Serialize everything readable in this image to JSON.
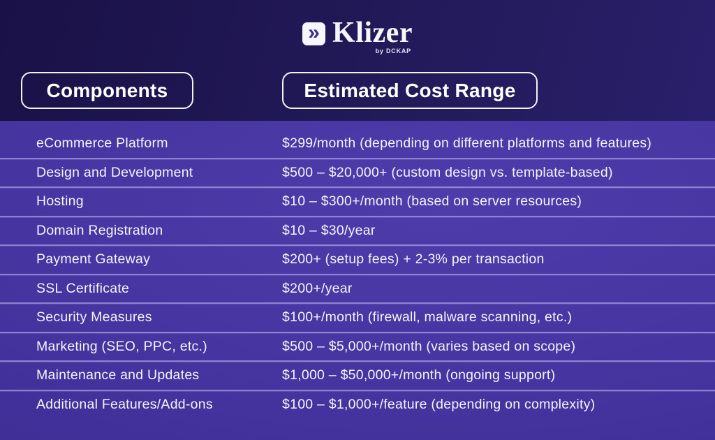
{
  "logo": {
    "name": "Klizer",
    "byline": "by DCKAP",
    "icon_glyph": "»",
    "icon_color": "#3b2b8e"
  },
  "colors": {
    "header_background_dark": "#1a1147",
    "header_background_light": "#2a1f6b",
    "table_background": "#44329d",
    "divider": "#cbc1f7",
    "text": "#f6f4fd",
    "pill_border": "#ffffff"
  },
  "chart_data": {
    "type": "table",
    "title": "",
    "columns": [
      "Components",
      "Estimated Cost Range"
    ],
    "rows": [
      [
        "eCommerce Platform",
        "$299/month (depending on different platforms and features)"
      ],
      [
        "Design and Development",
        "$500 – $20,000+ (custom design vs. template-based)"
      ],
      [
        "Hosting",
        "$10 – $300+/month (based on server resources)"
      ],
      [
        "Domain Registration",
        "$10 – $30/year"
      ],
      [
        "Payment Gateway",
        "$200+ (setup fees) + 2-3% per transaction"
      ],
      [
        "SSL Certificate",
        "$200+/year"
      ],
      [
        "Security Measures",
        "$100+/month (firewall, malware scanning, etc.)"
      ],
      [
        "Marketing (SEO, PPC, etc.)",
        "$500 – $5,000+/month (varies based on scope)"
      ],
      [
        "Maintenance and Updates",
        "$1,000 – $50,000+/month (ongoing support)"
      ],
      [
        "Additional Features/Add-ons",
        "$100 – $1,000+/feature (depending on complexity)"
      ]
    ]
  }
}
